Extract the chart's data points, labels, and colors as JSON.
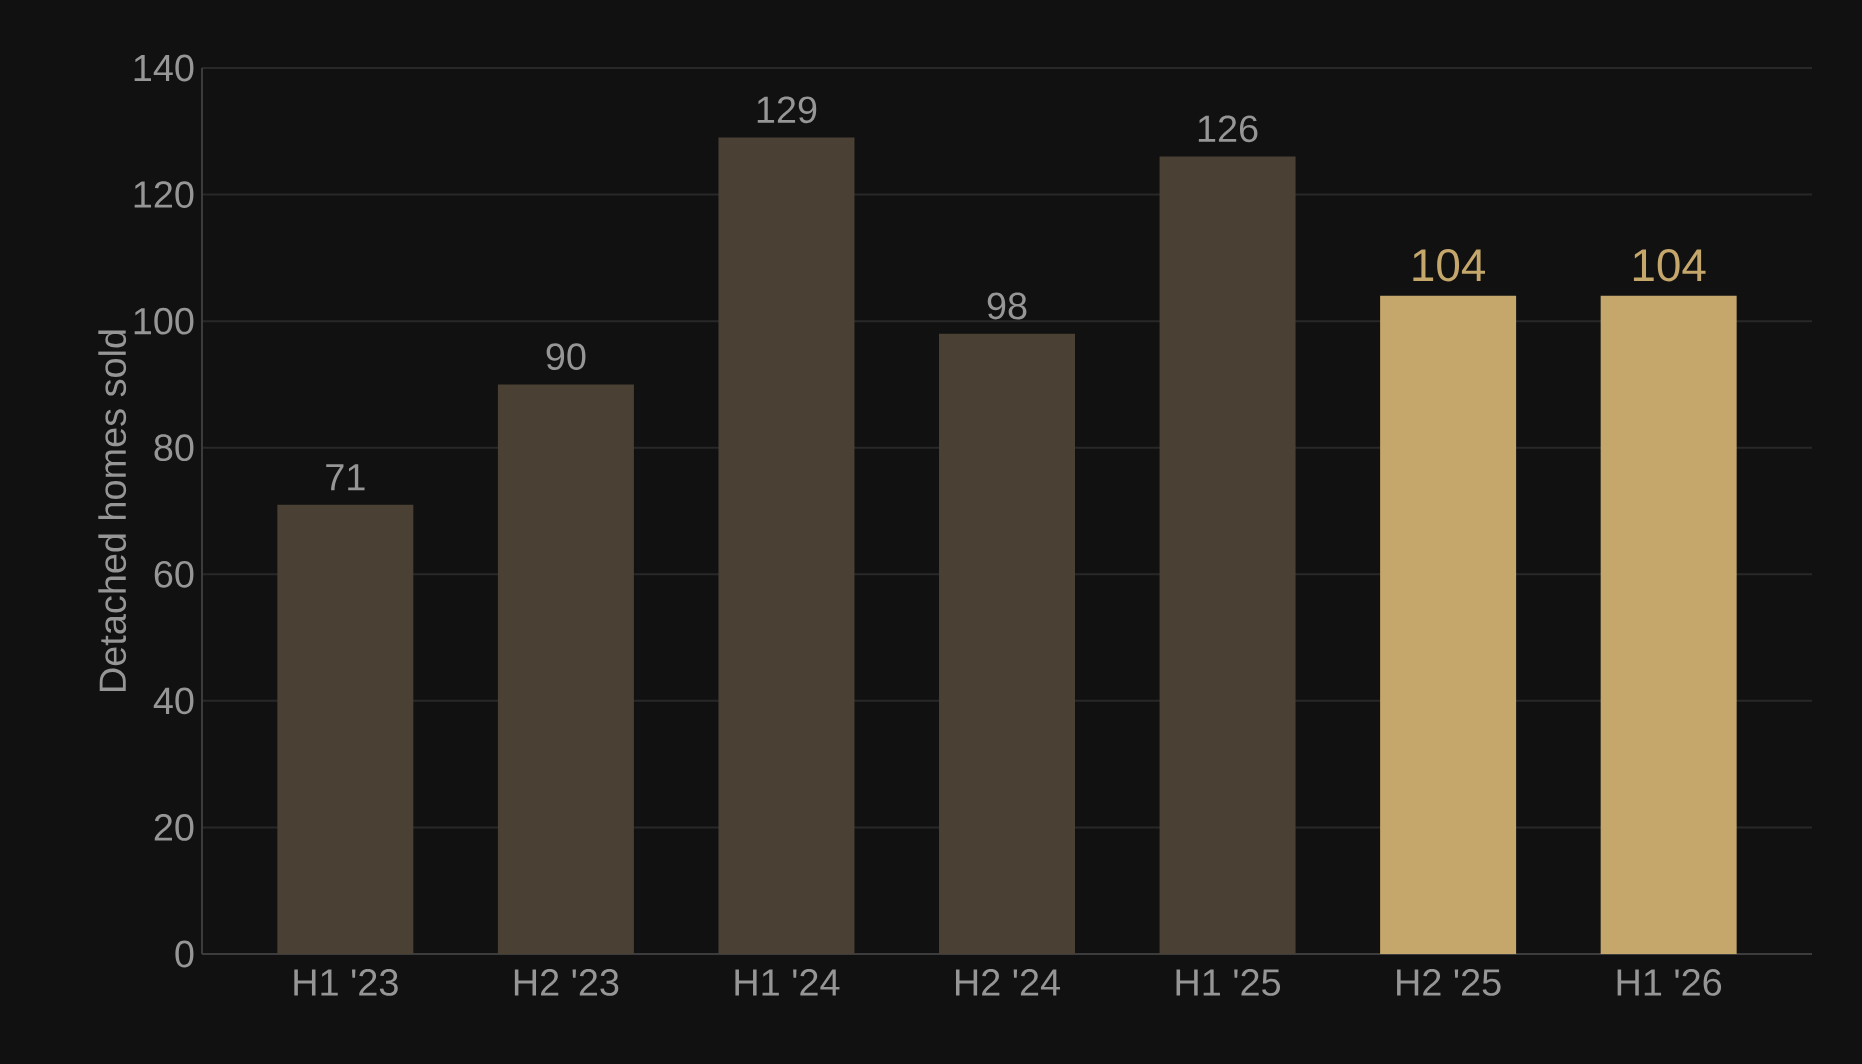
{
  "chart_data": {
    "type": "bar",
    "ylabel": "Detached homes sold",
    "categories": [
      "H1 '23",
      "H2 '23",
      "H1 '24",
      "H2 '24",
      "H1 '25",
      "H2 '25",
      "H1 '26"
    ],
    "values": [
      71,
      90,
      129,
      98,
      126,
      104,
      104
    ],
    "colors": [
      "#4a4034",
      "#4a4034",
      "#4a4034",
      "#4a4034",
      "#4a4034",
      "#c5a76c",
      "#c5a76c"
    ],
    "ylim": [
      0,
      140
    ],
    "yticks": [
      0,
      20,
      40,
      60,
      80,
      100,
      120,
      140
    ],
    "grid": "y",
    "data_labels": true
  }
}
